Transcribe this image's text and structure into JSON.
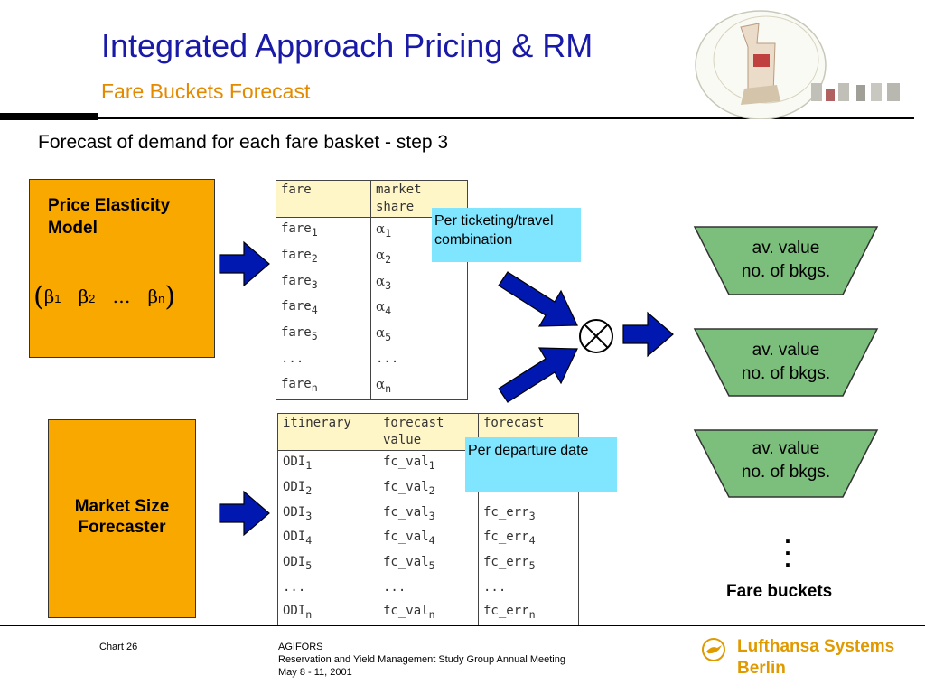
{
  "header": {
    "title": "Integrated Approach Pricing & RM",
    "subtitle": "Fare Buckets Forecast"
  },
  "heading": "Forecast of demand for each fare basket - step 3",
  "price_model": {
    "label_line1": "Price Elasticity",
    "label_line2": "Model",
    "beta": "β",
    "ellipsis": "…",
    "sub": [
      "1",
      "2",
      "n"
    ]
  },
  "market_model": {
    "label_line1": "Market Size",
    "label_line2": "Forecaster"
  },
  "fare_table": {
    "headers": [
      "fare",
      "market share"
    ],
    "rows": [
      {
        "name": "fare",
        "sub": "1",
        "alpha": "α",
        "asub": "1"
      },
      {
        "name": "fare",
        "sub": "2",
        "alpha": "α",
        "asub": "2"
      },
      {
        "name": "fare",
        "sub": "3",
        "alpha": "α",
        "asub": "3"
      },
      {
        "name": "fare",
        "sub": "4",
        "alpha": "α",
        "asub": "4"
      },
      {
        "name": "fare",
        "sub": "5",
        "alpha": "α",
        "asub": "5"
      },
      {
        "name": "...",
        "sub": "",
        "alpha": "...",
        "asub": ""
      },
      {
        "name": "fare",
        "sub": "n",
        "alpha": "α",
        "asub": "n"
      }
    ]
  },
  "itinerary_table": {
    "headers": [
      "itinerary",
      "forecast value",
      "forecast"
    ],
    "rows": [
      {
        "odi": "ODI",
        "sub": "1",
        "val": "fc_val",
        "err": ""
      },
      {
        "odi": "ODI",
        "sub": "2",
        "val": "fc_val",
        "err": ""
      },
      {
        "odi": "ODI",
        "sub": "3",
        "val": "fc_val",
        "err": "fc_err"
      },
      {
        "odi": "ODI",
        "sub": "4",
        "val": "fc_val",
        "err": "fc_err"
      },
      {
        "odi": "ODI",
        "sub": "5",
        "val": "fc_val",
        "err": "fc_err"
      },
      {
        "odi": "...",
        "sub": "",
        "val": "...",
        "err": "..."
      },
      {
        "odi": "ODI",
        "sub": "n",
        "val": "fc_val",
        "err": "fc_err"
      }
    ]
  },
  "notes": {
    "ticketing": "Per ticketing/travel combination",
    "departure": "Per departure date"
  },
  "buckets": [
    {
      "line1": "av. value",
      "line2": "no. of bkgs."
    },
    {
      "line1": "av. value",
      "line2": "no. of bkgs."
    },
    {
      "line1": "av. value",
      "line2": "no. of bkgs."
    }
  ],
  "fare_buckets_label": "Fare buckets",
  "footer": {
    "chart": "Chart 26",
    "org": "AGIFORS",
    "event": "Reservation and Yield Management Study Group Annual Meeting",
    "date": "May 8 - 11, 2001",
    "brand_line1": "Lufthansa Systems",
    "brand_line2": "Berlin"
  },
  "colors": {
    "title": "#1a1aa8",
    "subtitle": "#e48a00",
    "model_box": "#f9a800",
    "table_header": "#fff6c8",
    "note": "#80e6ff",
    "bucket": "#7cbf7c",
    "arrow": "#0018b0",
    "brand": "#e09a00"
  },
  "icons": [
    "right-arrow-icon",
    "tensor-product-icon",
    "lufthansa-crane-icon",
    "seal-logo"
  ]
}
